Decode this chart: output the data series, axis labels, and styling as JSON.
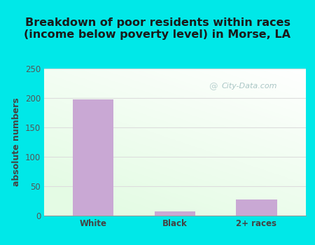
{
  "categories": [
    "White",
    "Black",
    "2+ races"
  ],
  "values": [
    198,
    7,
    27
  ],
  "bar_color": "#c9a8d4",
  "title": "Breakdown of poor residents within races\n(income below poverty level) in Morse, LA",
  "ylabel": "absolute numbers",
  "ylim": [
    0,
    250
  ],
  "yticks": [
    0,
    50,
    100,
    150,
    200,
    250
  ],
  "outer_bg": "#00e8e8",
  "grid_color": "#dddddd",
  "title_fontsize": 11.5,
  "label_fontsize": 9,
  "tick_fontsize": 8.5,
  "bar_width": 0.5,
  "watermark_text": "City-Data.com",
  "watermark_color": "#a0bfbf"
}
